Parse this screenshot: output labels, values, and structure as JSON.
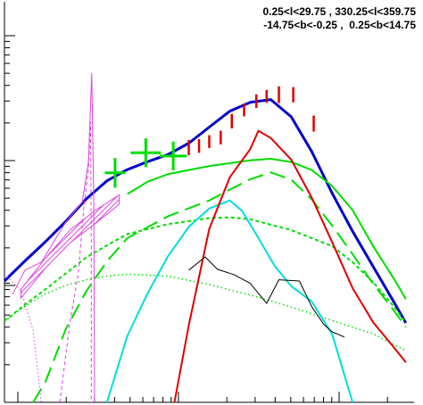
{
  "header": {
    "line1": "0.25<l<29.75 , 330.25<l<359.75",
    "line2": "-14.75<b<-0.25 ,  0.25<b<14.75"
  },
  "chart_data": {
    "type": "line",
    "title": "",
    "xlabel": "",
    "ylabel": "",
    "xscale": "log",
    "yscale": "log",
    "grid": false,
    "legend": "none",
    "xlim": [
      0.0,
      1.0
    ],
    "ylim": [
      0.0,
      1.0
    ],
    "series": [
      {
        "id": "total",
        "color": "#0000cc",
        "style": "solid-thick",
        "points": [
          [
            0.0,
            0.303
          ],
          [
            0.05,
            0.353
          ],
          [
            0.1,
            0.401
          ],
          [
            0.15,
            0.452
          ],
          [
            0.2,
            0.508
          ],
          [
            0.25,
            0.553
          ],
          [
            0.3,
            0.581
          ],
          [
            0.35,
            0.601
          ],
          [
            0.4,
            0.619
          ],
          [
            0.45,
            0.647
          ],
          [
            0.5,
            0.687
          ],
          [
            0.55,
            0.727
          ],
          [
            0.6,
            0.749
          ],
          [
            0.65,
            0.756
          ],
          [
            0.7,
            0.713
          ],
          [
            0.75,
            0.626
          ],
          [
            0.8,
            0.522
          ],
          [
            0.85,
            0.427
          ],
          [
            0.9,
            0.339
          ],
          [
            0.95,
            0.252
          ],
          [
            0.98,
            0.198
          ]
        ]
      },
      {
        "id": "green-solid",
        "color": "#00dd00",
        "style": "solid",
        "points": [
          [
            0.3,
            0.52
          ],
          [
            0.35,
            0.551
          ],
          [
            0.4,
            0.57
          ],
          [
            0.5,
            0.59
          ],
          [
            0.6,
            0.604
          ],
          [
            0.65,
            0.608
          ],
          [
            0.7,
            0.6
          ],
          [
            0.75,
            0.58
          ],
          [
            0.8,
            0.54
          ],
          [
            0.85,
            0.48
          ],
          [
            0.9,
            0.39
          ],
          [
            0.95,
            0.31
          ],
          [
            0.98,
            0.258
          ]
        ]
      },
      {
        "id": "green-dashed",
        "color": "#00dd00",
        "style": "long-dash",
        "points": [
          [
            0.07,
            0.0
          ],
          [
            0.1,
            0.051
          ],
          [
            0.15,
            0.183
          ],
          [
            0.2,
            0.278
          ],
          [
            0.25,
            0.352
          ],
          [
            0.3,
            0.41
          ],
          [
            0.4,
            0.465
          ],
          [
            0.5,
            0.504
          ],
          [
            0.55,
            0.531
          ],
          [
            0.6,
            0.557
          ],
          [
            0.65,
            0.574
          ],
          [
            0.7,
            0.556
          ],
          [
            0.75,
            0.507
          ],
          [
            0.8,
            0.441
          ],
          [
            0.85,
            0.37
          ],
          [
            0.9,
            0.296
          ],
          [
            0.95,
            0.23
          ],
          [
            0.98,
            0.188
          ]
        ]
      },
      {
        "id": "green-short-dash",
        "color": "#00dd00",
        "style": "short-dash",
        "points": [
          [
            0.0,
            0.203
          ],
          [
            0.05,
            0.244
          ],
          [
            0.1,
            0.282
          ],
          [
            0.15,
            0.322
          ],
          [
            0.2,
            0.362
          ],
          [
            0.25,
            0.392
          ],
          [
            0.3,
            0.42
          ],
          [
            0.4,
            0.445
          ],
          [
            0.5,
            0.46
          ],
          [
            0.55,
            0.462
          ],
          [
            0.6,
            0.457
          ],
          [
            0.7,
            0.43
          ],
          [
            0.8,
            0.39
          ],
          [
            0.85,
            0.35
          ],
          [
            0.9,
            0.3
          ],
          [
            0.95,
            0.24
          ],
          [
            0.98,
            0.198
          ]
        ]
      },
      {
        "id": "green-dotted",
        "color": "#00dd00",
        "style": "dotted",
        "points": [
          [
            0.0,
            0.203
          ],
          [
            0.05,
            0.24
          ],
          [
            0.1,
            0.271
          ],
          [
            0.15,
            0.292
          ],
          [
            0.2,
            0.306
          ],
          [
            0.25,
            0.315
          ],
          [
            0.3,
            0.32
          ],
          [
            0.4,
            0.315
          ],
          [
            0.5,
            0.294
          ],
          [
            0.6,
            0.268
          ],
          [
            0.7,
            0.238
          ],
          [
            0.8,
            0.204
          ],
          [
            0.9,
            0.171
          ],
          [
            0.98,
            0.129
          ]
        ]
      },
      {
        "id": "cyan",
        "color": "#00dddd",
        "style": "solid",
        "points": [
          [
            0.25,
            0.0
          ],
          [
            0.3,
            0.166
          ],
          [
            0.35,
            0.273
          ],
          [
            0.4,
            0.366
          ],
          [
            0.45,
            0.438
          ],
          [
            0.5,
            0.484
          ],
          [
            0.55,
            0.504
          ],
          [
            0.58,
            0.478
          ],
          [
            0.62,
            0.41
          ],
          [
            0.66,
            0.34
          ],
          [
            0.7,
            0.29
          ],
          [
            0.75,
            0.252
          ],
          [
            0.8,
            0.17
          ],
          [
            0.85,
            0.0
          ]
        ]
      },
      {
        "id": "red",
        "color": "#dd0000",
        "style": "solid",
        "points": [
          [
            0.415,
            0.0
          ],
          [
            0.45,
            0.193
          ],
          [
            0.5,
            0.433
          ],
          [
            0.55,
            0.562
          ],
          [
            0.6,
            0.632
          ],
          [
            0.62,
            0.678
          ],
          [
            0.65,
            0.66
          ],
          [
            0.7,
            0.606
          ],
          [
            0.75,
            0.511
          ],
          [
            0.8,
            0.4
          ],
          [
            0.85,
            0.285
          ],
          [
            0.9,
            0.2
          ],
          [
            0.95,
            0.138
          ],
          [
            0.98,
            0.1
          ]
        ]
      },
      {
        "id": "black",
        "color": "#000000",
        "style": "solid-thin",
        "points": [
          [
            0.45,
            0.33
          ],
          [
            0.49,
            0.363
          ],
          [
            0.52,
            0.332
          ],
          [
            0.56,
            0.319
          ],
          [
            0.6,
            0.297
          ],
          [
            0.64,
            0.247
          ],
          [
            0.67,
            0.306
          ],
          [
            0.72,
            0.303
          ],
          [
            0.75,
            0.239
          ],
          [
            0.78,
            0.194
          ],
          [
            0.8,
            0.176
          ],
          [
            0.83,
            0.163
          ]
        ]
      },
      {
        "id": "magenta-solid",
        "color": "#dd44dd",
        "style": "solid-thin",
        "points": [
          [
            0.02,
            0.27
          ],
          [
            0.05,
            0.33
          ],
          [
            0.09,
            0.35
          ],
          [
            0.15,
            0.45
          ],
          [
            0.19,
            0.5
          ],
          [
            0.205,
            0.6
          ],
          [
            0.213,
            0.821
          ],
          [
            0.218,
            0.5
          ],
          [
            0.22,
            0.0
          ]
        ]
      },
      {
        "id": "magenta-dashed",
        "color": "#dd44dd",
        "style": "short-dash-thin",
        "points": [
          [
            0.135,
            0.0
          ],
          [
            0.16,
            0.2
          ],
          [
            0.18,
            0.32
          ],
          [
            0.195,
            0.5
          ],
          [
            0.205,
            0.58
          ],
          [
            0.21,
            0.7
          ],
          [
            0.212,
            0.4
          ],
          [
            0.212,
            0.0
          ]
        ]
      },
      {
        "id": "magenta-dotted",
        "color": "#dd44dd",
        "style": "dotted-thin",
        "points": [
          [
            0.0,
            0.32
          ],
          [
            0.04,
            0.28
          ],
          [
            0.07,
            0.18
          ],
          [
            0.09,
            0.0
          ]
        ]
      }
    ],
    "band": {
      "id": "magenta-hatched-band",
      "color": "#dd44dd",
      "lower": [
        [
          0.04,
          0.26
        ],
        [
          0.1,
          0.335
        ],
        [
          0.16,
          0.398
        ],
        [
          0.22,
          0.445
        ],
        [
          0.28,
          0.494
        ]
      ],
      "upper": [
        [
          0.04,
          0.282
        ],
        [
          0.1,
          0.36
        ],
        [
          0.16,
          0.43
        ],
        [
          0.22,
          0.478
        ],
        [
          0.28,
          0.518
        ]
      ]
    },
    "data_points_green": [
      {
        "x": 0.27,
        "y": 0.573,
        "xerr": 0.025,
        "yerr": 0.037
      },
      {
        "x": 0.345,
        "y": 0.623,
        "xerr": 0.037,
        "yerr": 0.036
      },
      {
        "x": 0.412,
        "y": 0.615,
        "xerr": 0.033,
        "yerr": 0.036
      }
    ],
    "data_points_red": [
      {
        "x": 0.45,
        "y": 0.636,
        "yerr": 0.019
      },
      {
        "x": 0.475,
        "y": 0.64,
        "yerr": 0.017
      },
      {
        "x": 0.5,
        "y": 0.651,
        "yerr": 0.016
      },
      {
        "x": 0.528,
        "y": 0.661,
        "yerr": 0.017
      },
      {
        "x": 0.555,
        "y": 0.702,
        "yerr": 0.018
      },
      {
        "x": 0.585,
        "y": 0.73,
        "yerr": 0.016
      },
      {
        "x": 0.615,
        "y": 0.752,
        "yerr": 0.017
      },
      {
        "x": 0.64,
        "y": 0.764,
        "yerr": 0.016
      },
      {
        "x": 0.67,
        "y": 0.768,
        "yerr": 0.021
      },
      {
        "x": 0.705,
        "y": 0.768,
        "yerr": 0.019
      },
      {
        "x": 0.755,
        "y": 0.696,
        "yerr": 0.02
      }
    ]
  }
}
